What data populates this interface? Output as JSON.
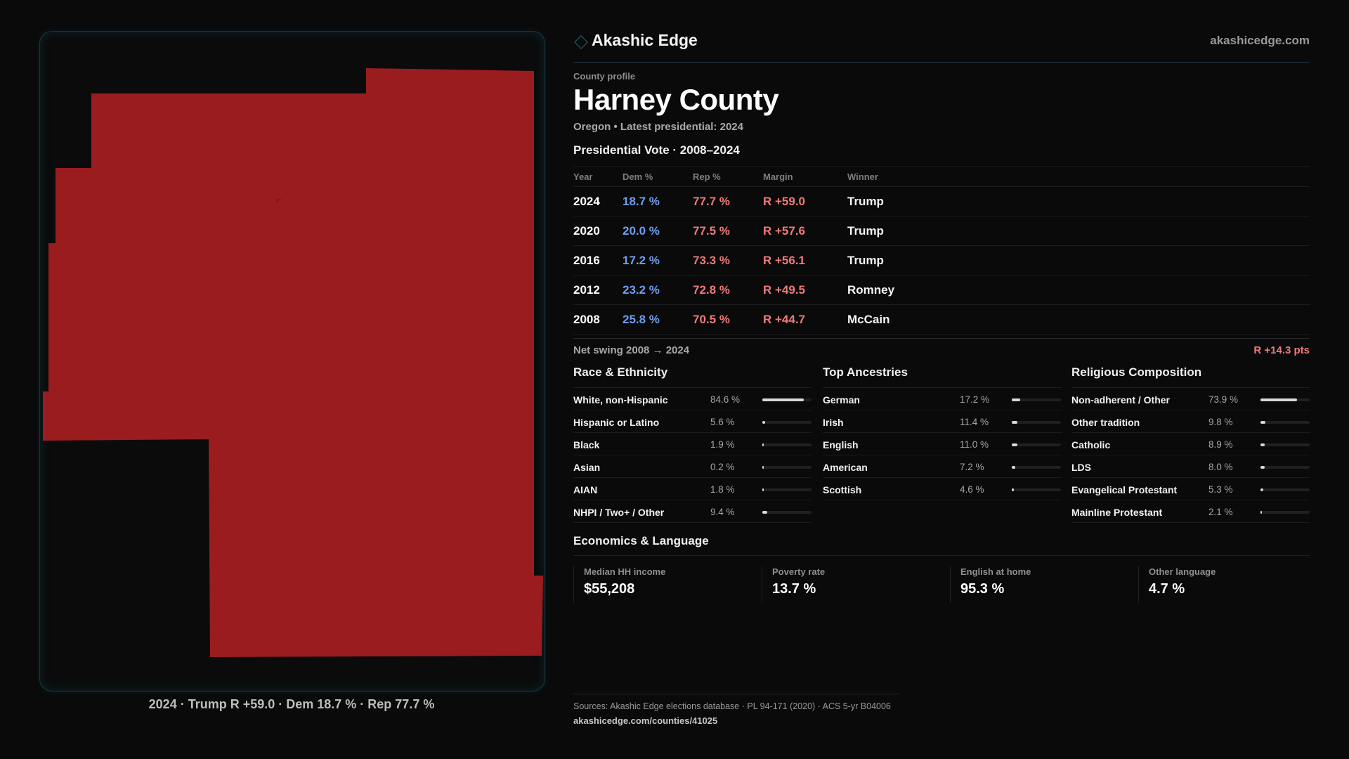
{
  "map": {
    "fill_color": "#9b1c1f",
    "caption": "2024 · Trump R +59.0 · Dem 18.7 % · Rep 77.7 %"
  },
  "brand": {
    "icon": "diamond-icon",
    "name": "Akashic Edge",
    "url": "akashicedge.com"
  },
  "profile": {
    "eyebrow": "County profile",
    "title": "Harney County",
    "subtitle": "Oregon • Latest presidential: 2024"
  },
  "votes": {
    "heading": "Presidential Vote · 2008–2024",
    "columns": [
      "Year",
      "Dem %",
      "Rep %",
      "Margin",
      "Winner"
    ],
    "rows": [
      {
        "year": "2024",
        "dem": "18.7 %",
        "rep": "77.7 %",
        "margin": "R +59.0",
        "winner": "Trump"
      },
      {
        "year": "2020",
        "dem": "20.0 %",
        "rep": "77.5 %",
        "margin": "R +57.6",
        "winner": "Trump"
      },
      {
        "year": "2016",
        "dem": "17.2 %",
        "rep": "73.3 %",
        "margin": "R +56.1",
        "winner": "Trump"
      },
      {
        "year": "2012",
        "dem": "23.2 %",
        "rep": "72.8 %",
        "margin": "R +49.5",
        "winner": "Romney"
      },
      {
        "year": "2008",
        "dem": "25.8 %",
        "rep": "70.5 %",
        "margin": "R +44.7",
        "winner": "McCain"
      }
    ],
    "dem_color": "#6f9ff0",
    "rep_color": "#f07a7a"
  },
  "swing": {
    "label": "Net swing 2008 → 2024",
    "value": "R +14.3 pts"
  },
  "race": {
    "heading": "Race & Ethnicity",
    "items": [
      {
        "label": "White, non-Hispanic",
        "value": "84.6 %",
        "pct": 84.6
      },
      {
        "label": "Hispanic or Latino",
        "value": "5.6 %",
        "pct": 5.6
      },
      {
        "label": "Black",
        "value": "1.9 %",
        "pct": 1.9
      },
      {
        "label": "Asian",
        "value": "0.2 %",
        "pct": 0.2
      },
      {
        "label": "AIAN",
        "value": "1.8 %",
        "pct": 1.8
      },
      {
        "label": "NHPI / Two+ / Other",
        "value": "9.4 %",
        "pct": 9.4
      }
    ]
  },
  "ancestry": {
    "heading": "Top Ancestries",
    "items": [
      {
        "label": "German",
        "value": "17.2 %",
        "pct": 17.2
      },
      {
        "label": "Irish",
        "value": "11.4 %",
        "pct": 11.4
      },
      {
        "label": "English",
        "value": "11.0 %",
        "pct": 11.0
      },
      {
        "label": "American",
        "value": "7.2 %",
        "pct": 7.2
      },
      {
        "label": "Scottish",
        "value": "4.6 %",
        "pct": 4.6
      }
    ]
  },
  "religion": {
    "heading": "Religious Composition",
    "items": [
      {
        "label": "Non-adherent / Other",
        "value": "73.9 %",
        "pct": 73.9
      },
      {
        "label": "Other tradition",
        "value": "9.8 %",
        "pct": 9.8
      },
      {
        "label": "Catholic",
        "value": "8.9 %",
        "pct": 8.9
      },
      {
        "label": "LDS",
        "value": "8.0 %",
        "pct": 8.0
      },
      {
        "label": "Evangelical Protestant",
        "value": "5.3 %",
        "pct": 5.3
      },
      {
        "label": "Mainline Protestant",
        "value": "2.1 %",
        "pct": 2.1
      }
    ]
  },
  "economics": {
    "heading": "Economics & Language",
    "cards": [
      {
        "label": "Median HH income",
        "value": "$55,208"
      },
      {
        "label": "Poverty rate",
        "value": "13.7 %"
      },
      {
        "label": "English at home",
        "value": "95.3 %"
      },
      {
        "label": "Other language",
        "value": "4.7 %"
      }
    ]
  },
  "sources": {
    "text": "Sources: Akashic Edge elections database · PL 94-171 (2020) · ACS 5-yr B04006",
    "link": "akashicedge.com/counties/41025"
  }
}
